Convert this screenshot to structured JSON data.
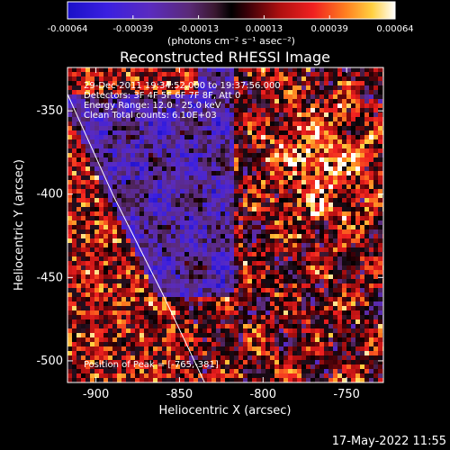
{
  "chart_data": {
    "type": "heatmap",
    "title": "Reconstructed RHESSI Image",
    "xlabel": "Heliocentric X (arcsec)",
    "ylabel": "Heliocentric Y (arcsec)",
    "xlim": [
      -917,
      -728
    ],
    "ylim": [
      -513,
      -324
    ],
    "x_ticks": [
      -900,
      -850,
      -800,
      -750
    ],
    "y_ticks": [
      -500,
      -450,
      -400,
      -350
    ],
    "colorbar": {
      "ticks": [
        "-0.00064",
        "-0.00039",
        "-0.00013",
        "0.00013",
        "0.00039",
        "0.00064"
      ],
      "unit_label": "(photons cm⁻² s⁻¹ asec⁻²)",
      "range": [
        -0.00064,
        0.00064
      ]
    },
    "annotations": {
      "time_range": "29-Dec-2011 19:34:52.000 to 19:37:56.000",
      "detectors": "Detectors: 3F 4F 5F 6F 7F 8F, Att 0",
      "energy": "Energy Range: 12.0 - 25.0 keV",
      "clean": "Clean     Total counts: 6.10E+03",
      "peak": "Position of Peak = [-765,-381]"
    },
    "peak_position": [
      -765,
      -381
    ],
    "limb_curve": [
      [
        -917,
        -340
      ],
      [
        -890,
        -400
      ],
      [
        -860,
        -460
      ],
      [
        -835,
        -513
      ]
    ]
  },
  "footer": {
    "timestamp": "17-May-2022 11:55"
  },
  "colors": {
    "background": "#000000",
    "axes": "#ffffff"
  }
}
